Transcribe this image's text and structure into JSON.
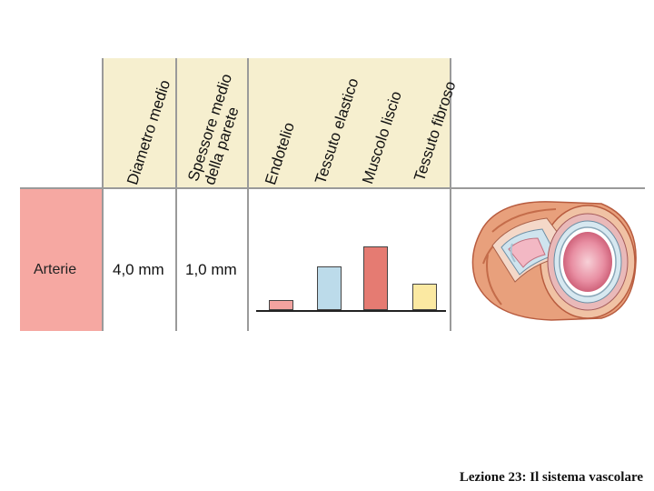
{
  "headers": {
    "diametro": "Diametro medio",
    "spessore_1": "Spessore medio",
    "spessore_2": "della parete",
    "endotelio": "Endotelio",
    "elastico": "Tessuto elastico",
    "muscolo": "Muscolo liscio",
    "fibroso": "Tessuto fibroso"
  },
  "row": {
    "label": "Arterie",
    "diametro": "4,0 mm",
    "spessore": "1,0 mm"
  },
  "composition": {
    "bars": [
      {
        "tissue": "Endotelio",
        "level": 0.15,
        "color": "#f2a3a0"
      },
      {
        "tissue": "Tessuto elastico",
        "level": 0.68,
        "color": "#bcdbea"
      },
      {
        "tissue": "Muscolo liscio",
        "level": 1.0,
        "color": "#e57b72"
      },
      {
        "tissue": "Tessuto fibroso",
        "level": 0.42,
        "color": "#fbe9a2"
      }
    ]
  },
  "footer": "Lezione 23: Il sistema vascolare",
  "colors": {
    "header_bg": "#f6efcf",
    "row_label_bg": "#f6a8a2"
  }
}
